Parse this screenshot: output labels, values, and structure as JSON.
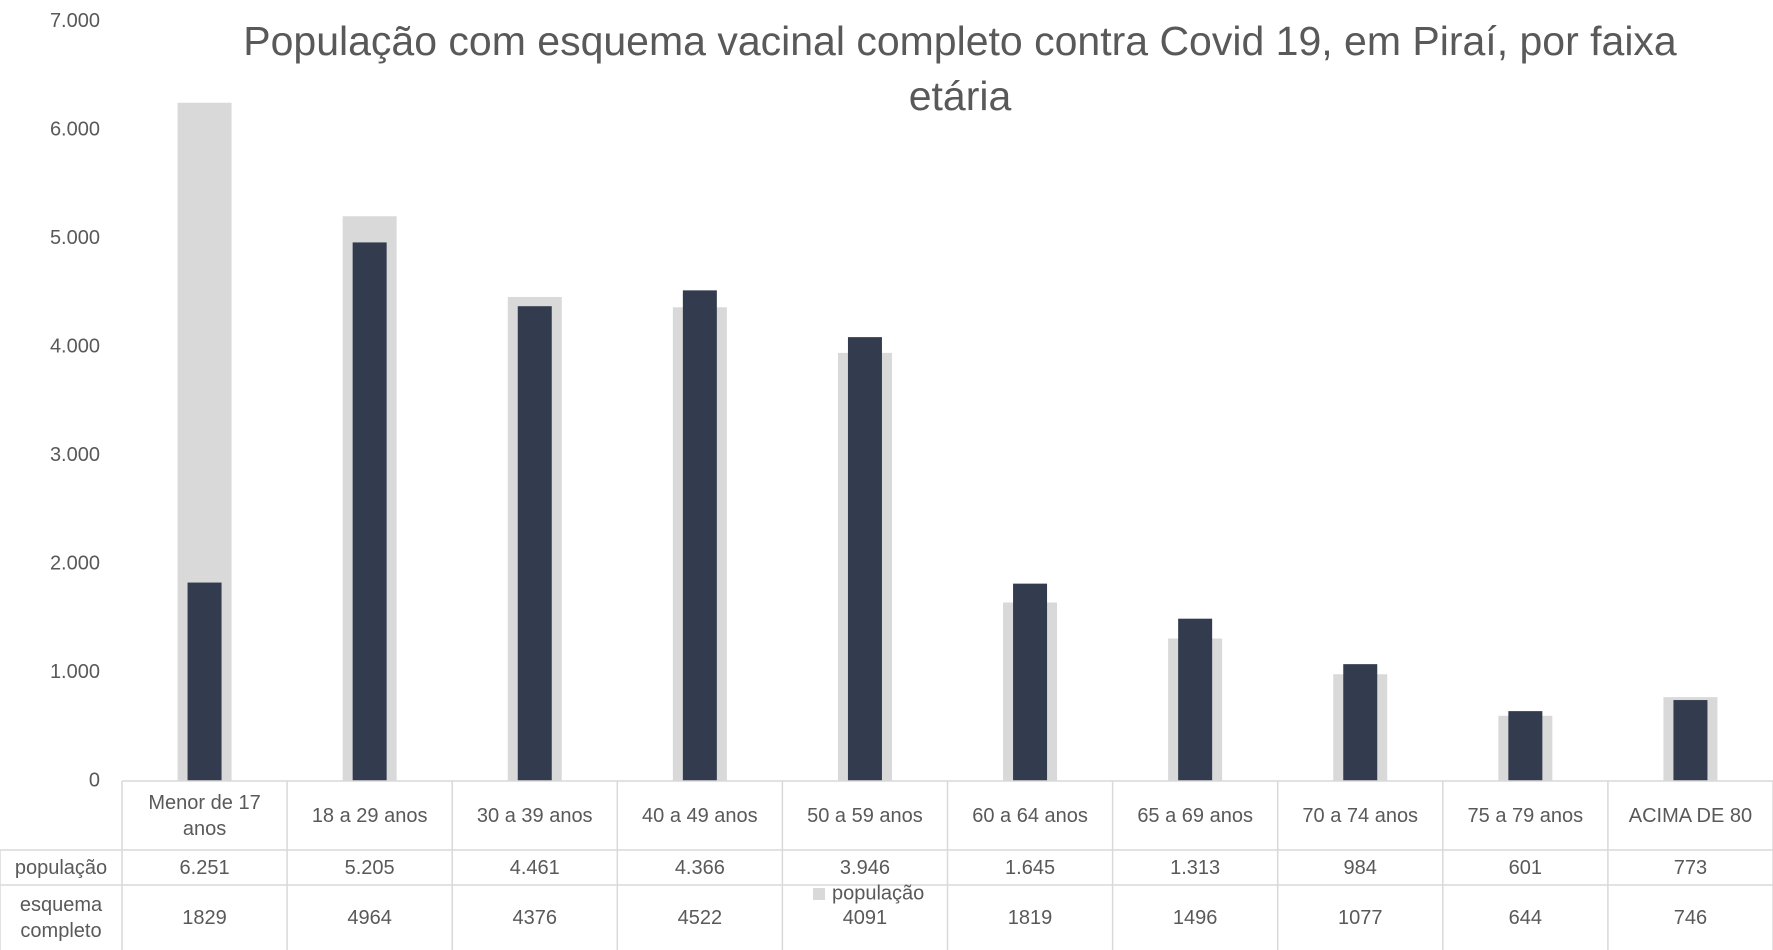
{
  "chart_data": {
    "type": "bar",
    "title": "População com esquema vacinal completo contra Covid 19, em Piraí, por faixa etária",
    "categories": [
      "Menor de 17 anos",
      "18 a 29 anos",
      "30 a 39 anos",
      "40 a 49 anos",
      "50 a 59 anos",
      "60 a 64 anos",
      "65 a 69 anos",
      "70 a 74 anos",
      "75 a 79 anos",
      "ACIMA DE 80"
    ],
    "series": [
      {
        "name": "população",
        "color": "#d9d9d9",
        "values": [
          6251,
          5205,
          4461,
          4366,
          3946,
          1645,
          1313,
          984,
          601,
          773
        ],
        "value_labels": [
          "6.251",
          "5.205",
          "4.461",
          "4.366",
          "3.946",
          "1.645",
          "1.313",
          "984",
          "601",
          "773"
        ]
      },
      {
        "name": "esquema completo",
        "color": "#323c4e",
        "values": [
          1829,
          4964,
          4376,
          4522,
          4091,
          1819,
          1496,
          1077,
          644,
          746
        ]
      }
    ],
    "ylim": [
      0,
      7000
    ],
    "yticks": [
      {
        "value": 0,
        "label": "0"
      },
      {
        "value": 1000,
        "label": "1.000"
      },
      {
        "value": 2000,
        "label": "2.000"
      },
      {
        "value": 3000,
        "label": "3.000"
      },
      {
        "value": 4000,
        "label": "4.000"
      },
      {
        "value": 5000,
        "label": "5.000"
      },
      {
        "value": 6000,
        "label": "6.000"
      },
      {
        "value": 7000,
        "label": "7.000"
      }
    ],
    "grid": false
  }
}
